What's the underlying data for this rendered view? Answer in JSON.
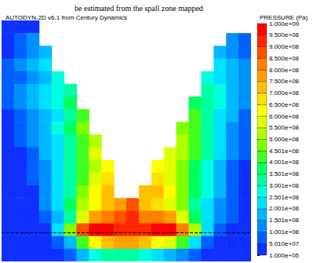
{
  "chart_data": {
    "type": "contour",
    "title": "AUTODYN-2D v6.1 from Century Dynamics",
    "caption": "be estimated from the spall zone mapped",
    "tick_labels": false,
    "cells": [
      [
        25000000.0,
        25000000.0,
        25000000.0,
        null,
        null,
        null,
        null,
        null,
        null,
        null,
        null,
        null,
        null,
        null,
        null,
        null,
        null,
        null,
        null,
        null
      ],
      [
        25000000.0,
        75000000.0,
        125000000.0,
        null,
        null,
        null,
        null,
        null,
        null,
        null,
        null,
        null,
        null,
        null,
        null,
        null,
        null,
        null,
        125000000.0,
        75000000.0
      ],
      [
        25000000.0,
        75000000.0,
        125000000.0,
        175000000.0,
        null,
        null,
        null,
        null,
        null,
        null,
        null,
        null,
        null,
        null,
        null,
        null,
        null,
        175000000.0,
        125000000.0,
        75000000.0
      ],
      [
        75000000.0,
        125000000.0,
        175000000.0,
        225000000.0,
        null,
        null,
        null,
        null,
        null,
        null,
        null,
        null,
        null,
        null,
        null,
        null,
        null,
        225000000.0,
        175000000.0,
        125000000.0
      ],
      [
        75000000.0,
        75000000.0,
        125000000.0,
        175000000.0,
        275000000.0,
        null,
        null,
        null,
        null,
        null,
        null,
        null,
        null,
        null,
        null,
        null,
        275000000.0,
        225000000.0,
        175000000.0,
        125000000.0
      ],
      [
        75000000.0,
        125000000.0,
        175000000.0,
        225000000.0,
        275000000.0,
        325000000.0,
        null,
        null,
        null,
        null,
        null,
        null,
        null,
        null,
        null,
        null,
        325000000.0,
        275000000.0,
        175000000.0,
        125000000.0
      ],
      [
        75000000.0,
        125000000.0,
        175000000.0,
        225000000.0,
        275000000.0,
        375000000.0,
        null,
        null,
        null,
        null,
        null,
        null,
        null,
        null,
        null,
        375000000.0,
        325000000.0,
        275000000.0,
        175000000.0,
        125000000.0
      ],
      [
        25000000.0,
        75000000.0,
        125000000.0,
        175000000.0,
        225000000.0,
        325000000.0,
        425000000.0,
        null,
        null,
        null,
        null,
        null,
        null,
        null,
        null,
        425000000.0,
        325000000.0,
        225000000.0,
        175000000.0,
        75000000.0
      ],
      [
        25000000.0,
        75000000.0,
        125000000.0,
        175000000.0,
        275000000.0,
        375000000.0,
        475000000.0,
        null,
        null,
        null,
        null,
        null,
        null,
        null,
        475000000.0,
        425000000.0,
        325000000.0,
        225000000.0,
        125000000.0,
        75000000.0
      ],
      [
        25000000.0,
        75000000.0,
        125000000.0,
        175000000.0,
        225000000.0,
        325000000.0,
        425000000.0,
        525000000.0,
        null,
        null,
        null,
        null,
        null,
        null,
        525000000.0,
        425000000.0,
        325000000.0,
        225000000.0,
        125000000.0,
        75000000.0
      ],
      [
        25000000.0,
        25000000.0,
        75000000.0,
        175000000.0,
        225000000.0,
        325000000.0,
        425000000.0,
        575000000.0,
        null,
        null,
        null,
        null,
        null,
        575000000.0,
        525000000.0,
        425000000.0,
        325000000.0,
        225000000.0,
        125000000.0,
        75000000.0
      ],
      [
        25000000.0,
        25000000.0,
        75000000.0,
        125000000.0,
        225000000.0,
        325000000.0,
        425000000.0,
        525000000.0,
        625000000.0,
        null,
        null,
        null,
        625000000.0,
        575000000.0,
        475000000.0,
        375000000.0,
        275000000.0,
        175000000.0,
        75000000.0,
        25000000.0
      ],
      [
        25000000.0,
        25000000.0,
        75000000.0,
        125000000.0,
        225000000.0,
        325000000.0,
        425000000.0,
        575000000.0,
        675000000.0,
        null,
        null,
        null,
        675000000.0,
        575000000.0,
        475000000.0,
        375000000.0,
        275000000.0,
        175000000.0,
        75000000.0,
        25000000.0
      ],
      [
        25000000.0,
        25000000.0,
        25000000.0,
        125000000.0,
        225000000.0,
        325000000.0,
        475000000.0,
        625000000.0,
        725000000.0,
        null,
        null,
        725000000.0,
        725000000.0,
        625000000.0,
        475000000.0,
        375000000.0,
        275000000.0,
        175000000.0,
        75000000.0,
        25000000.0
      ],
      [
        25000000.0,
        25000000.0,
        25000000.0,
        125000000.0,
        225000000.0,
        375000000.0,
        525000000.0,
        625000000.0,
        725000000.0,
        775000000.0,
        875000000.0,
        725000000.0,
        675000000.0,
        575000000.0,
        475000000.0,
        325000000.0,
        225000000.0,
        125000000.0,
        75000000.0,
        25000000.0
      ],
      [
        25000000.0,
        25000000.0,
        25000000.0,
        75000000.0,
        175000000.0,
        325000000.0,
        575000000.0,
        775000000.0,
        825000000.0,
        875000000.0,
        925000000.0,
        825000000.0,
        825000000.0,
        775000000.0,
        575000000.0,
        375000000.0,
        225000000.0,
        125000000.0,
        75000000.0,
        25000000.0
      ],
      [
        25000000.0,
        25000000.0,
        25000000.0,
        25000000.0,
        225000000.0,
        475000000.0,
        875000000.0,
        975000000.0,
        975000000.0,
        925000000.0,
        925000000.0,
        925000000.0,
        975000000.0,
        975000000.0,
        825000000.0,
        525000000.0,
        225000000.0,
        75000000.0,
        25000000.0,
        25000000.0
      ],
      [
        25000000.0,
        25000000.0,
        25000000.0,
        25000000.0,
        75000000.0,
        175000000.0,
        425000000.0,
        625000000.0,
        725000000.0,
        775000000.0,
        775000000.0,
        725000000.0,
        625000000.0,
        575000000.0,
        425000000.0,
        225000000.0,
        75000000.0,
        25000000.0,
        25000000.0,
        25000000.0
      ],
      [
        25000000.0,
        25000000.0,
        25000000.0,
        25000000.0,
        25000000.0,
        75000000.0,
        175000000.0,
        275000000.0,
        325000000.0,
        325000000.0,
        325000000.0,
        275000000.0,
        225000000.0,
        175000000.0,
        125000000.0,
        75000000.0,
        25000000.0,
        25000000.0,
        25000000.0,
        25000000.0
      ]
    ],
    "annotations": [
      {
        "type": "line",
        "y": 16.75,
        "line_style": "dashed"
      }
    ],
    "colorbar": {
      "title": "PRESSURE (Pa)",
      "range": [
        100000,
        1000000000
      ],
      "ticks": [
        {
          "value": 100000,
          "label": "1.000e+05"
        },
        {
          "value": 50100000,
          "label": "5.010e+07"
        },
        {
          "value": 100100000,
          "label": "1.001e+08"
        },
        {
          "value": 150100000,
          "label": "1.501e+08"
        },
        {
          "value": 200100000,
          "label": "2.001e+08"
        },
        {
          "value": 250100000,
          "label": "2.501e+08"
        },
        {
          "value": 300100000,
          "label": "3.001e+08"
        },
        {
          "value": 350100000,
          "label": "3.501e+08"
        },
        {
          "value": 400100000,
          "label": "4.001e+08"
        },
        {
          "value": 450100000,
          "label": "4.501e+08"
        },
        {
          "value": 500000000,
          "label": "5.000e+08"
        },
        {
          "value": 550000000,
          "label": "5.500e+08"
        },
        {
          "value": 600000000,
          "label": "6.000e+08"
        },
        {
          "value": 650000000,
          "label": "6.500e+08"
        },
        {
          "value": 700000000,
          "label": "7.000e+08"
        },
        {
          "value": 750000000,
          "label": "7.500e+08"
        },
        {
          "value": 800000000,
          "label": "8.000e+08"
        },
        {
          "value": 850000000,
          "label": "8.500e+08"
        },
        {
          "value": 900000000,
          "label": "9.000e+08"
        },
        {
          "value": 950000000,
          "label": "9.500e+08"
        },
        {
          "value": 1000000000,
          "label": "1.000e+09"
        }
      ],
      "colors": [
        "#1030ff",
        "#0060ff",
        "#0090ff",
        "#00b8ff",
        "#00e0ff",
        "#00ffe0",
        "#00ffa0",
        "#00ff60",
        "#40ff20",
        "#80ff00",
        "#b0ff00",
        "#e0ff00",
        "#ffff00",
        "#ffe000",
        "#ffc000",
        "#ffa000",
        "#ff8000",
        "#ff5000",
        "#ff2800",
        "#ff0000"
      ]
    }
  }
}
